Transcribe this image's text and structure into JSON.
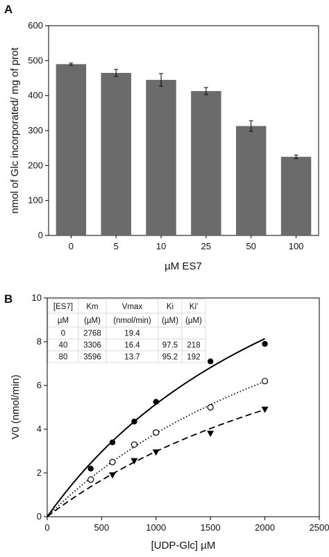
{
  "chart_data": [
    {
      "panel_label": "A",
      "type": "bar",
      "xlabel": "µM ES7",
      "ylabel": "nmol of Glc incorporated/ mg of prot",
      "categories": [
        "0",
        "5",
        "10",
        "25",
        "50",
        "100"
      ],
      "values": [
        490,
        465,
        445,
        413,
        313,
        225
      ],
      "errors": [
        3,
        10,
        18,
        10,
        15,
        5
      ],
      "ylim": [
        0,
        600
      ],
      "yticks": [
        0,
        100,
        200,
        300,
        400,
        500,
        600
      ],
      "bar_color": "#6b6b6b"
    },
    {
      "panel_label": "B",
      "type": "scatter",
      "xlabel": "[UDP-Glc] µM",
      "ylabel": "V0 (nmol/min)",
      "xlim": [
        0,
        2500
      ],
      "ylim": [
        0,
        10
      ],
      "xticks": [
        0,
        500,
        1000,
        1500,
        2000,
        2500
      ],
      "yticks": [
        0,
        2,
        4,
        6,
        8,
        10
      ],
      "series": [
        {
          "marker": "filled-circle",
          "line_style": "solid",
          "Vmax": 19.4,
          "Km": 2768,
          "x": [
            400,
            600,
            800,
            1000,
            1500,
            2000
          ],
          "y": [
            2.2,
            3.4,
            4.35,
            5.25,
            7.1,
            7.9
          ]
        },
        {
          "marker": "open-circle",
          "line_style": "dotted",
          "Vmax": 16.4,
          "Km": 3306,
          "x": [
            400,
            600,
            800,
            1000,
            1500,
            2000
          ],
          "y": [
            1.7,
            2.5,
            3.3,
            3.85,
            5.0,
            6.2
          ]
        },
        {
          "marker": "filled-triangle-down",
          "line_style": "dashed",
          "Vmax": 13.7,
          "Km": 3596,
          "x": [
            600,
            800,
            1000,
            1500,
            2000
          ],
          "y": [
            1.9,
            2.55,
            2.95,
            3.8,
            4.9
          ]
        }
      ],
      "table": {
        "header1": [
          "[ES7]",
          "Km",
          "Vmax",
          "Ki",
          "Ki'"
        ],
        "header2": [
          "µM",
          "(µM)",
          "(nmol/min)",
          "(µM)",
          "(µM)"
        ],
        "rows": [
          [
            "0",
            "2768",
            "19.4",
            "",
            ""
          ],
          [
            "40",
            "3306",
            "16.4",
            "97.5",
            "218"
          ],
          [
            "80",
            "3596",
            "13.7",
            "95.2",
            "192"
          ]
        ]
      }
    }
  ]
}
